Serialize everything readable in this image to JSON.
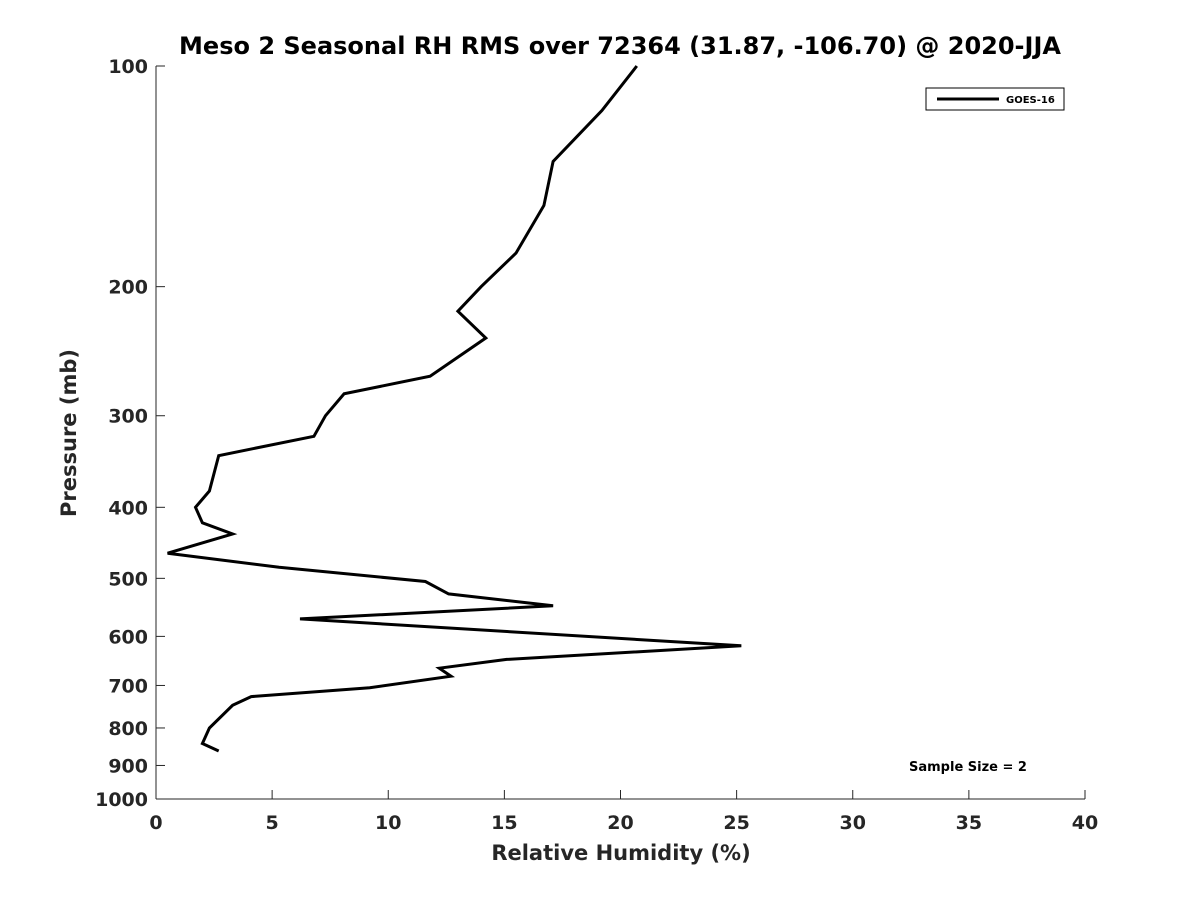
{
  "chart_data": {
    "type": "line",
    "title": "Meso 2 Seasonal RH RMS over 72364 (31.87, -106.70) @ 2020-JJA",
    "xlabel": "Relative Humidity (%)",
    "ylabel": "Pressure (mb)",
    "xlim": [
      0,
      40
    ],
    "ylim": [
      1000,
      100
    ],
    "y_scale": "log",
    "y_reversed": true,
    "x_ticks": [
      0,
      5,
      10,
      15,
      20,
      25,
      30,
      35,
      40
    ],
    "y_ticks": [
      100,
      200,
      300,
      400,
      500,
      600,
      700,
      800,
      900,
      1000
    ],
    "grid": false,
    "legend_position": "top-right",
    "series": [
      {
        "name": "GOES-16",
        "color": "#000000",
        "x": [
          20.7,
          19.2,
          17.1,
          16.7,
          15.5,
          14.0,
          13.0,
          14.2,
          11.8,
          8.1,
          7.3,
          6.8,
          2.7,
          2.3,
          1.7,
          2.0,
          3.3,
          0.5,
          5.3,
          11.6,
          12.6,
          17.1,
          6.2,
          25.2,
          15.1,
          12.2,
          12.7,
          9.2,
          4.1,
          3.3,
          2.3,
          2.0,
          2.7
        ],
        "y": [
          100,
          115,
          135,
          155,
          180,
          200,
          216,
          235,
          265,
          280,
          300,
          320,
          340,
          380,
          400,
          420,
          435,
          462,
          483,
          505,
          525,
          545,
          568,
          618,
          645,
          663,
          680,
          705,
          725,
          745,
          800,
          840,
          860
        ]
      }
    ],
    "annotations": [
      "Sample Size = 2"
    ]
  }
}
